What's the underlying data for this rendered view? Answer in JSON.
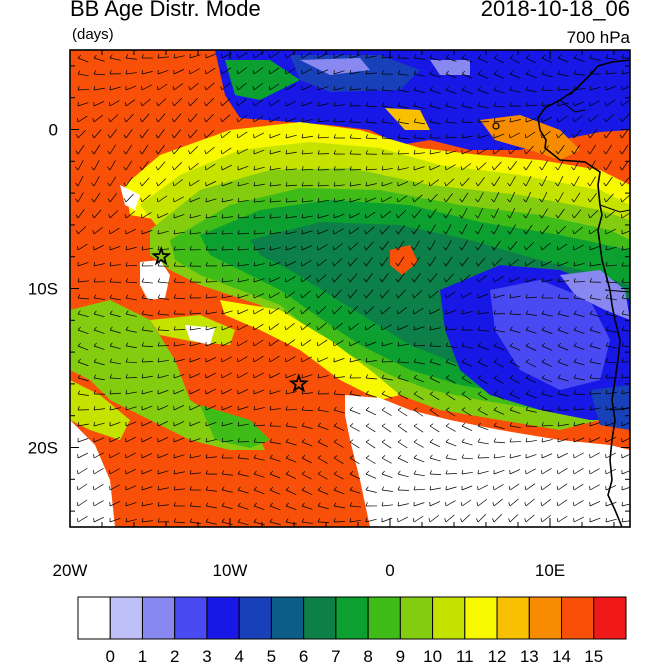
{
  "title": "BB Age Distr. Mode",
  "subtitle": "(days)",
  "datetime": "2018-10-18_06",
  "level": "700 hPa",
  "lon_labels": [
    "20W",
    "10W",
    "0",
    "10E"
  ],
  "lat_labels": [
    "0",
    "10S",
    "20S"
  ],
  "colorbar": {
    "labels": [
      "0",
      "1",
      "2",
      "3",
      "4",
      "5",
      "6",
      "7",
      "8",
      "9",
      "10",
      "11",
      "12",
      "13",
      "14",
      "15"
    ],
    "colors": [
      "#ffffff",
      "#c0c0f8",
      "#8888f0",
      "#4a4af2",
      "#1818e6",
      "#1840b8",
      "#0c5e88",
      "#0c8048",
      "#0ca030",
      "#40bc18",
      "#84cc10",
      "#c4e400",
      "#f8f800",
      "#f8c000",
      "#f88c00",
      "#f85008",
      "#f01818"
    ]
  },
  "markers": [
    {
      "name": "star-1",
      "lon": -14.3,
      "lat": -8.0
    },
    {
      "name": "star-2",
      "lon": -5.7,
      "lat": -16.0
    }
  ],
  "map": {
    "lon_range": [
      -20,
      15
    ],
    "lat_range": [
      -25,
      5
    ],
    "background": "#f85008"
  }
}
